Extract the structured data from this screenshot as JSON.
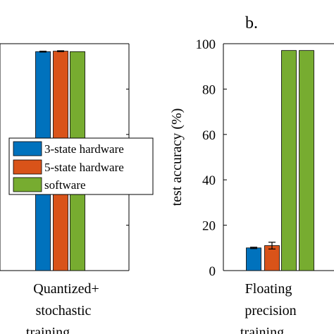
{
  "chart_data": [
    {
      "type": "bar",
      "title": "",
      "xlabel": "",
      "ylabel": "",
      "ylim": [
        0,
        100
      ],
      "categories": [
        [
          "Quantized+",
          "stochastic",
          "training"
        ]
      ],
      "series": [
        {
          "name": "3-state hardware",
          "color": "#0072BD",
          "values": [
            96.5
          ],
          "err": [
            0.2
          ]
        },
        {
          "name": "5-state hardware",
          "color": "#D95319",
          "values": [
            96.7
          ],
          "err": [
            0.2
          ]
        },
        {
          "name": "software",
          "color": "#77AC30",
          "values": [
            96.5
          ],
          "err": [
            0
          ]
        }
      ],
      "legend": {
        "placement": "center-left"
      },
      "grid": false
    },
    {
      "type": "bar",
      "panel_label": "b.",
      "title": "",
      "xlabel": "",
      "ylabel": "test accuracy (%)",
      "ylim": [
        0,
        100
      ],
      "yticks": [
        0,
        20,
        40,
        60,
        80,
        100
      ],
      "categories": [
        [
          "Floating",
          "precision",
          "training"
        ]
      ],
      "series": [
        {
          "name": "3-state hardware",
          "color": "#0072BD",
          "values": [
            10
          ],
          "err": [
            0.3
          ]
        },
        {
          "name": "5-state hardware",
          "color": "#D95319",
          "values": [
            11
          ],
          "err": [
            1.5
          ]
        },
        {
          "name": "software",
          "color": "#77AC30",
          "values": [
            97
          ],
          "err": [
            0
          ]
        },
        {
          "name": "software",
          "color": "#77AC30",
          "values": [
            97
          ],
          "err": [
            0
          ]
        }
      ],
      "grid": false
    }
  ]
}
